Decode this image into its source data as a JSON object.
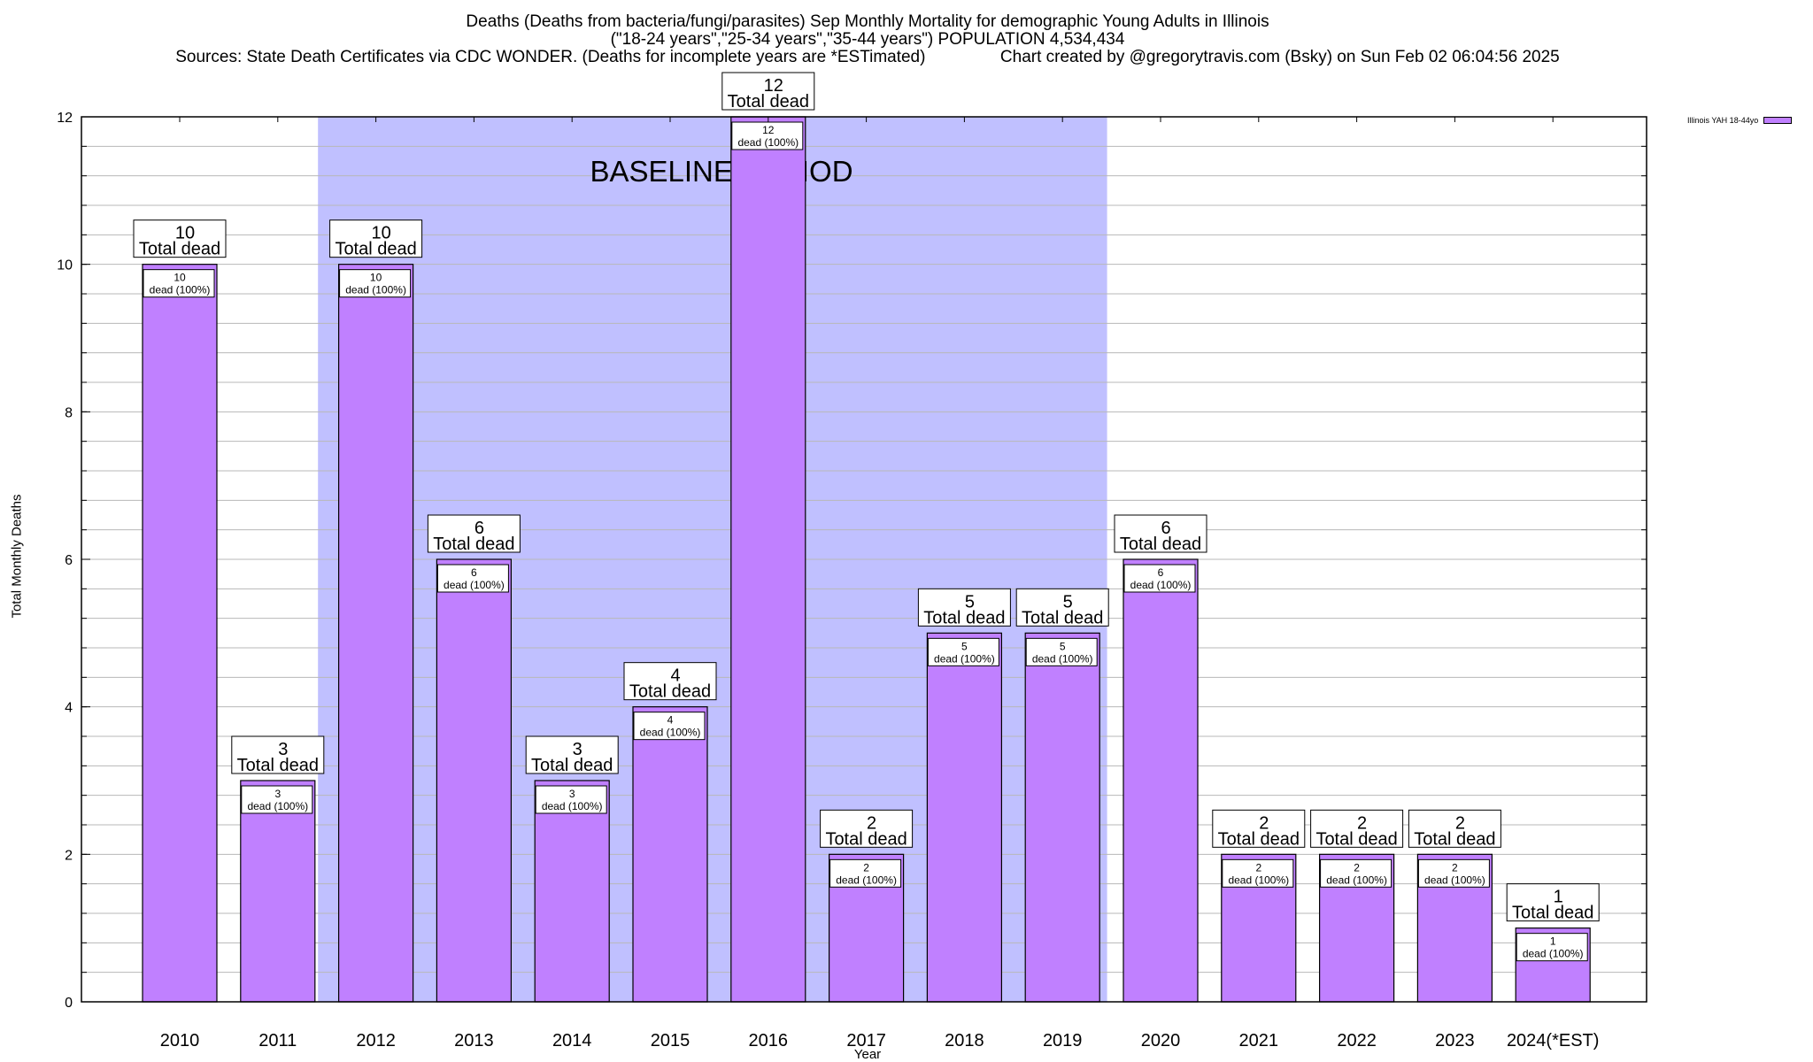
{
  "chart_data": {
    "type": "bar",
    "title_lines": [
      "Deaths (Deaths from bacteria/fungi/parasites) Sep Monthly Mortality for demographic Young Adults in Illinois",
      "(\"18-24 years\",\"25-34 years\",\"35-44 years\") POPULATION 4,534,434",
      "Sources: State Death Certificates via CDC WONDER. (Deaths for incomplete years are *ESTimated)                Chart created by @gregorytravis.com (Bsky) on Sun Feb 02 06:04:56 2025"
    ],
    "xlabel": "Year",
    "ylabel": "Total Monthly Deaths",
    "ylim": [
      0,
      12
    ],
    "yticks": [
      0,
      2,
      4,
      6,
      8,
      10,
      12
    ],
    "minor_grid_step": 0.4,
    "grid": true,
    "categories": [
      "2010",
      "2011",
      "2012",
      "2013",
      "2014",
      "2015",
      "2016",
      "2017",
      "2018",
      "2019",
      "2020",
      "2021",
      "2022",
      "2023",
      "2024(*EST)"
    ],
    "series": [
      {
        "name": "Illinois YAH 18-44yo",
        "color": "#c080ff",
        "values": [
          10,
          3,
          10,
          6,
          3,
          4,
          12,
          2,
          5,
          5,
          6,
          2,
          2,
          2,
          1
        ]
      }
    ],
    "top_label_suffix": "Total dead",
    "inner_label_suffix": "dead (100%)",
    "baseline_period": {
      "label": "BASELINE PERIOD",
      "start_category": "2012",
      "end_category": "2019",
      "color": "#c0c0ff"
    },
    "legend": {
      "position": "top-right",
      "entries": [
        "Illinois YAH 18-44yo"
      ]
    }
  }
}
